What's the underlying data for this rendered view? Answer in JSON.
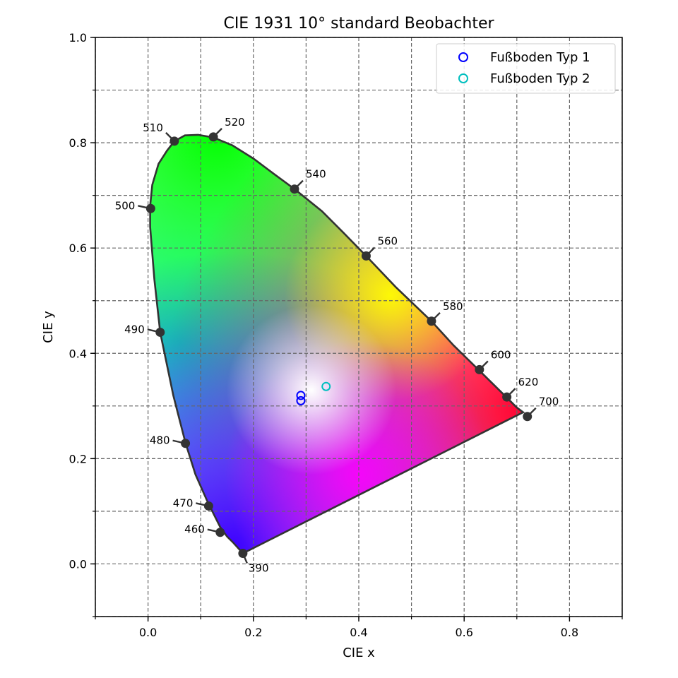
{
  "chart_data": {
    "type": "scatter",
    "title": "CIE 1931 10° standard Beobachter",
    "xlabel": "CIE x",
    "ylabel": "CIE y",
    "xlim": [
      -0.1,
      0.9
    ],
    "ylim": [
      -0.1,
      1.0
    ],
    "x_ticks": [
      {
        "value": 0.0,
        "label": "0.0"
      },
      {
        "value": 0.2,
        "label": "0.2"
      },
      {
        "value": 0.4,
        "label": "0.4"
      },
      {
        "value": 0.6,
        "label": "0.6"
      },
      {
        "value": 0.8,
        "label": "0.8"
      }
    ],
    "y_ticks": [
      {
        "value": 0.0,
        "label": "0.0"
      },
      {
        "value": 0.2,
        "label": "0.2"
      },
      {
        "value": 0.4,
        "label": "0.4"
      },
      {
        "value": 0.6,
        "label": "0.6"
      },
      {
        "value": 0.8,
        "label": "0.8"
      },
      {
        "value": 1.0,
        "label": "1.0"
      }
    ],
    "grid": true,
    "legend_position": "top-right",
    "locus": [
      [
        0.18,
        0.02
      ],
      [
        0.162,
        0.04
      ],
      [
        0.15,
        0.052
      ],
      [
        0.137,
        0.07
      ],
      [
        0.122,
        0.1
      ],
      [
        0.112,
        0.12
      ],
      [
        0.09,
        0.17
      ],
      [
        0.071,
        0.23
      ],
      [
        0.048,
        0.32
      ],
      [
        0.023,
        0.44
      ],
      [
        0.012,
        0.54
      ],
      [
        0.004,
        0.64
      ],
      [
        0.004,
        0.68
      ],
      [
        0.008,
        0.72
      ],
      [
        0.02,
        0.76
      ],
      [
        0.036,
        0.785
      ],
      [
        0.05,
        0.803
      ],
      [
        0.07,
        0.814
      ],
      [
        0.095,
        0.815
      ],
      [
        0.124,
        0.81
      ],
      [
        0.16,
        0.795
      ],
      [
        0.2,
        0.77
      ],
      [
        0.24,
        0.74
      ],
      [
        0.278,
        0.712
      ],
      [
        0.33,
        0.67
      ],
      [
        0.37,
        0.63
      ],
      [
        0.414,
        0.585
      ],
      [
        0.47,
        0.526
      ],
      [
        0.538,
        0.461
      ],
      [
        0.58,
        0.415
      ],
      [
        0.628,
        0.368
      ],
      [
        0.681,
        0.316
      ],
      [
        0.7,
        0.297
      ],
      [
        0.712,
        0.288
      ],
      [
        0.68,
        0.272
      ],
      [
        0.18,
        0.02
      ]
    ],
    "wavelength_markers": [
      {
        "label": "390",
        "x": 0.18,
        "y": 0.02,
        "side": "down-right"
      },
      {
        "label": "460",
        "x": 0.137,
        "y": 0.06,
        "side": "left"
      },
      {
        "label": "470",
        "x": 0.115,
        "y": 0.11,
        "side": "left"
      },
      {
        "label": "480",
        "x": 0.071,
        "y": 0.229,
        "side": "left"
      },
      {
        "label": "490",
        "x": 0.023,
        "y": 0.44,
        "side": "left"
      },
      {
        "label": "500",
        "x": 0.005,
        "y": 0.675,
        "side": "left"
      },
      {
        "label": "510",
        "x": 0.05,
        "y": 0.803,
        "side": "up-left"
      },
      {
        "label": "520",
        "x": 0.124,
        "y": 0.811,
        "side": "up-right"
      },
      {
        "label": "540",
        "x": 0.278,
        "y": 0.712,
        "side": "up-right"
      },
      {
        "label": "560",
        "x": 0.414,
        "y": 0.585,
        "side": "up-right"
      },
      {
        "label": "580",
        "x": 0.538,
        "y": 0.461,
        "side": "up-right"
      },
      {
        "label": "600",
        "x": 0.629,
        "y": 0.369,
        "side": "up-right"
      },
      {
        "label": "620",
        "x": 0.681,
        "y": 0.317,
        "side": "up-right"
      },
      {
        "label": "700",
        "x": 0.72,
        "y": 0.28,
        "side": "up-right"
      }
    ],
    "series": [
      {
        "name": "Fußboden Typ 1",
        "color": "#0000ff",
        "marker": "open-circle",
        "points": [
          [
            0.29,
            0.32
          ],
          [
            0.29,
            0.31
          ]
        ]
      },
      {
        "name": "Fußboden Typ 2",
        "color": "#00bfbf",
        "marker": "open-circle",
        "points": [
          [
            0.338,
            0.337
          ]
        ]
      }
    ]
  }
}
